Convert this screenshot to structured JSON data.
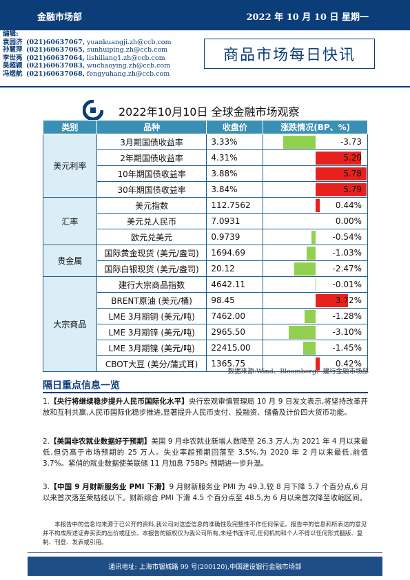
{
  "header": {
    "dept": "金融市场部",
    "date": "2022 年 10 月 10 日  星期一"
  },
  "editors": {
    "label": "编辑:",
    "people": [
      {
        "name": "袁园济",
        "phone": "(021)60637067,",
        "email": "yuankuangji.zh@ccb.com"
      },
      {
        "name": "孙慧萍",
        "phone": "(021)60637065,",
        "email": "sunhuiping.zh@ccb.com"
      },
      {
        "name": "李世亮",
        "phone": "(021)60637064,",
        "email": "lishiliang1.zh@ccb.com"
      },
      {
        "name": "吴超颖",
        "phone": "(021)60637083,",
        "email": "wuchaoying.zh@ccb.com"
      },
      {
        "name": "冯煜航",
        "phone": "(021)60637068,",
        "email": "fengyuhang.zh@ccb.com"
      }
    ]
  },
  "doc_title": "商品市场每日快讯",
  "table": {
    "title": "2022年10月10日  全球金融市场观察",
    "headers": [
      "类别",
      "品种",
      "收盘价",
      "涨跌情况(BP、%)"
    ],
    "groups": [
      {
        "category": "美元利率",
        "rows": [
          {
            "item": "3月期国债收益率",
            "close": "3.33%",
            "change": "-3.73",
            "value": -3.73
          },
          {
            "item": "2年期国债收益率",
            "close": "4.31%",
            "change": "5.20",
            "value": 5.2
          },
          {
            "item": "10年期国债收益率",
            "close": "3.88%",
            "change": "5.78",
            "value": 5.78
          },
          {
            "item": "30年期国债收益率",
            "close": "3.84%",
            "change": "5.79",
            "value": 5.79
          }
        ]
      },
      {
        "category": "汇率",
        "rows": [
          {
            "item": "美元指数",
            "close": "112.7562",
            "change": "0.44%",
            "value": 0.44
          },
          {
            "item": "美元兑人民币",
            "close": "7.0931",
            "change": "0.00%",
            "value": 0.0
          },
          {
            "item": "欧元兑美元",
            "close": "0.9739",
            "change": "-0.54%",
            "value": -0.54
          }
        ]
      },
      {
        "category": "贵金属",
        "rows": [
          {
            "item": "国际黄金现货 (美元/盎司)",
            "close": "1694.69",
            "change": "-1.03%",
            "value": -1.03
          },
          {
            "item": "国际白银现货 (美元/盎司)",
            "close": "20.12",
            "change": "-2.47%",
            "value": -2.47
          }
        ]
      },
      {
        "category": "大宗商品",
        "rows": [
          {
            "item": "建行大宗商品指数",
            "close": "4642.11",
            "change": "-0.01%",
            "value": -0.01
          },
          {
            "item": "BRENT原油 (美元/桶)",
            "close": "98.45",
            "change": "3.72%",
            "value": 3.72
          },
          {
            "item": "LME 3月期铜 (美元/吨)",
            "close": "7462.00",
            "change": "-1.28%",
            "value": -1.28
          },
          {
            "item": "LME 3月期锌 (美元/吨)",
            "close": "2965.50",
            "change": "-3.10%",
            "value": -3.1
          },
          {
            "item": "LME 3月期镍 (美元/吨)",
            "close": "22415.00",
            "change": "-1.45%",
            "value": -1.45
          },
          {
            "item": "CBOT大豆 (美分/蒲式耳)",
            "close": "1365.75",
            "change": "0.42%",
            "value": 0.42
          }
        ]
      }
    ],
    "source": "数据来源:Wind、Bloomberg、建行金融市场部",
    "colors": {
      "header": "#3a8fb5",
      "positive": "#e8211c",
      "negative": "#92d050",
      "category_bg": "#dbeef8"
    }
  },
  "news_section": {
    "heading": "隔日重点信息一览",
    "items": [
      {
        "num": "1.",
        "title": "【央行将继续稳步提升人民币国际化水平】",
        "body": "央行宏观审慎管理局 10 月 9 日发文表示,将坚持改革开放和互利共赢,人民币国际化稳步推进,显著提升人民币支付、投融资、储备及计价四大货币功能。"
      },
      {
        "num": "2.",
        "title": "【美国非农就业数据好于预期】",
        "body": "美国 9 月非农就业新增人数降至 26.3 万人,为 2021 年 4 月以来最低,但仍高于市场预期的 25 万人。失业率超预期回落至 3.5%,为 2020 年 2 月以来最低,前值 3.7%。紧俏的就业数据使美联储 11 月加息 75BPs 预期进一步升温。"
      },
      {
        "num": "3.",
        "title": "【中国 9 月财新服务业 PMI 下滑】",
        "body": "9 月财新服务业 PMI 为 49.3,较 8 月下降 5.7 个百分点,6 月以来首次落至荣枯线以下。财新综合 PMI 下滑 4.5 个百分点至 48.5,为 6 月以来首次降至收缩区间。"
      }
    ]
  },
  "disclaimer": "本报告中的信息均来源于已公开的资料,我公司对这些信息的准确性及完整性不作任何保证。报告中的信息和所表达的意见并不构成所述证券买卖的出价或征价。本报告的版权仅为我公司所有,未经书面许可,任何机构和个人不得以任何形式翻版、复制、刊登、发表或引用。",
  "footer": "通讯地址: 上海市银城路 99 号(200120),中国建设银行金融市场部"
}
